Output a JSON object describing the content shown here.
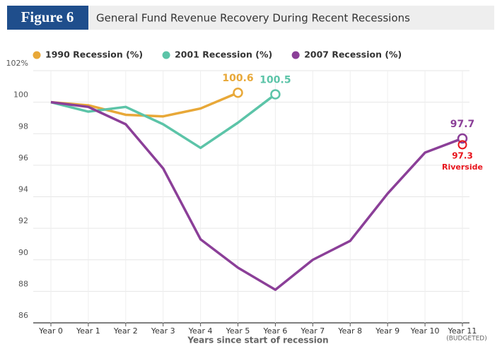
{
  "chart_data": {
    "type": "line",
    "figure_label": "Figure 6",
    "title": "General Fund Revenue Recovery During Recent Recessions",
    "x_label": "Years since start of recession",
    "x_note": "(BUDGETED)",
    "categories": [
      "Year 0",
      "Year 1",
      "Year 2",
      "Year 3",
      "Year 4",
      "Year 5",
      "Year 6",
      "Year 7",
      "Year 8",
      "Year 9",
      "Year 10",
      "Year 11"
    ],
    "series": [
      {
        "name": "1990 Recession (%)",
        "color": "#e8a838",
        "values": [
          100,
          99.8,
          99.2,
          99.1,
          99.6,
          100.6,
          null,
          null,
          null,
          null,
          null,
          null
        ]
      },
      {
        "name": "2001 Recession (%)",
        "color": "#5cc4a8",
        "values": [
          100,
          99.4,
          99.7,
          98.6,
          97.1,
          98.7,
          100.5,
          null,
          null,
          null,
          null,
          null
        ]
      },
      {
        "name": "2007 Recession (%)",
        "color": "#8b3f98",
        "values": [
          100,
          99.7,
          98.6,
          95.8,
          91.3,
          89.5,
          88.1,
          90.0,
          91.2,
          94.2,
          96.8,
          97.7
        ]
      }
    ],
    "annotations": [
      {
        "text": "Riverside",
        "category": "Year 11",
        "value": 97.3,
        "color": "#e8141c"
      }
    ],
    "ylim": [
      86,
      102
    ],
    "yticks": [
      86,
      88,
      90,
      92,
      94,
      96,
      98,
      100,
      {
        "value": 102,
        "label": "102%"
      }
    ],
    "grid": true
  }
}
